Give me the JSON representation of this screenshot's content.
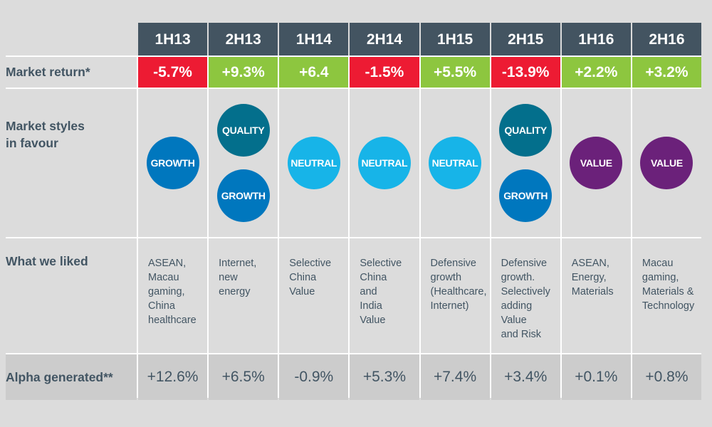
{
  "periods": [
    "1H13",
    "2H13",
    "1H14",
    "2H14",
    "1H15",
    "2H15",
    "1H16",
    "2H16"
  ],
  "row_labels": {
    "market_return": "Market return*",
    "market_styles": "Market styles\nin favour",
    "what_we_liked": "What we liked",
    "alpha_generated": "Alpha generated**"
  },
  "market_return": [
    {
      "value": "-5.7%",
      "sign": "negative"
    },
    {
      "value": "+9.3%",
      "sign": "positive"
    },
    {
      "value": "+6.4",
      "sign": "positive"
    },
    {
      "value": "-1.5%",
      "sign": "negative"
    },
    {
      "value": "+5.5%",
      "sign": "positive"
    },
    {
      "value": "-13.9%",
      "sign": "negative"
    },
    {
      "value": "+2.2%",
      "sign": "positive"
    },
    {
      "value": "+3.2%",
      "sign": "positive"
    }
  ],
  "market_styles": [
    [
      "GROWTH"
    ],
    [
      "QUALITY",
      "GROWTH"
    ],
    [
      "NEUTRAL"
    ],
    [
      "NEUTRAL"
    ],
    [
      "NEUTRAL"
    ],
    [
      "QUALITY",
      "GROWTH"
    ],
    [
      "VALUE"
    ],
    [
      "VALUE"
    ]
  ],
  "what_we_liked": [
    "ASEAN,\nMacau\ngaming,\nChina\nhealthcare",
    "Internet,\nnew\nenergy",
    "Selective\nChina\nValue",
    "Selective\nChina\nand\nIndia\nValue",
    "Defensive\ngrowth\n(Healthcare,\nInternet)",
    "Defensive\ngrowth.\nSelectively\nadding\nValue\nand Risk",
    "ASEAN,\nEnergy,\nMaterials",
    "Macau\ngaming,\nMaterials &\nTechnology"
  ],
  "alpha_generated": [
    "+12.6%",
    "+6.5%",
    "-0.9%",
    "+5.3%",
    "+7.4%",
    "+3.4%",
    "+0.1%",
    "+0.8%"
  ],
  "colors": {
    "header_bg": "#435461",
    "negative": "#ed1b33",
    "positive": "#8dc63f",
    "style_colors": {
      "GROWTH": "#0077be",
      "QUALITY": "#036f8c",
      "NEUTRAL": "#17b4e8",
      "VALUE": "#6b217a"
    }
  }
}
